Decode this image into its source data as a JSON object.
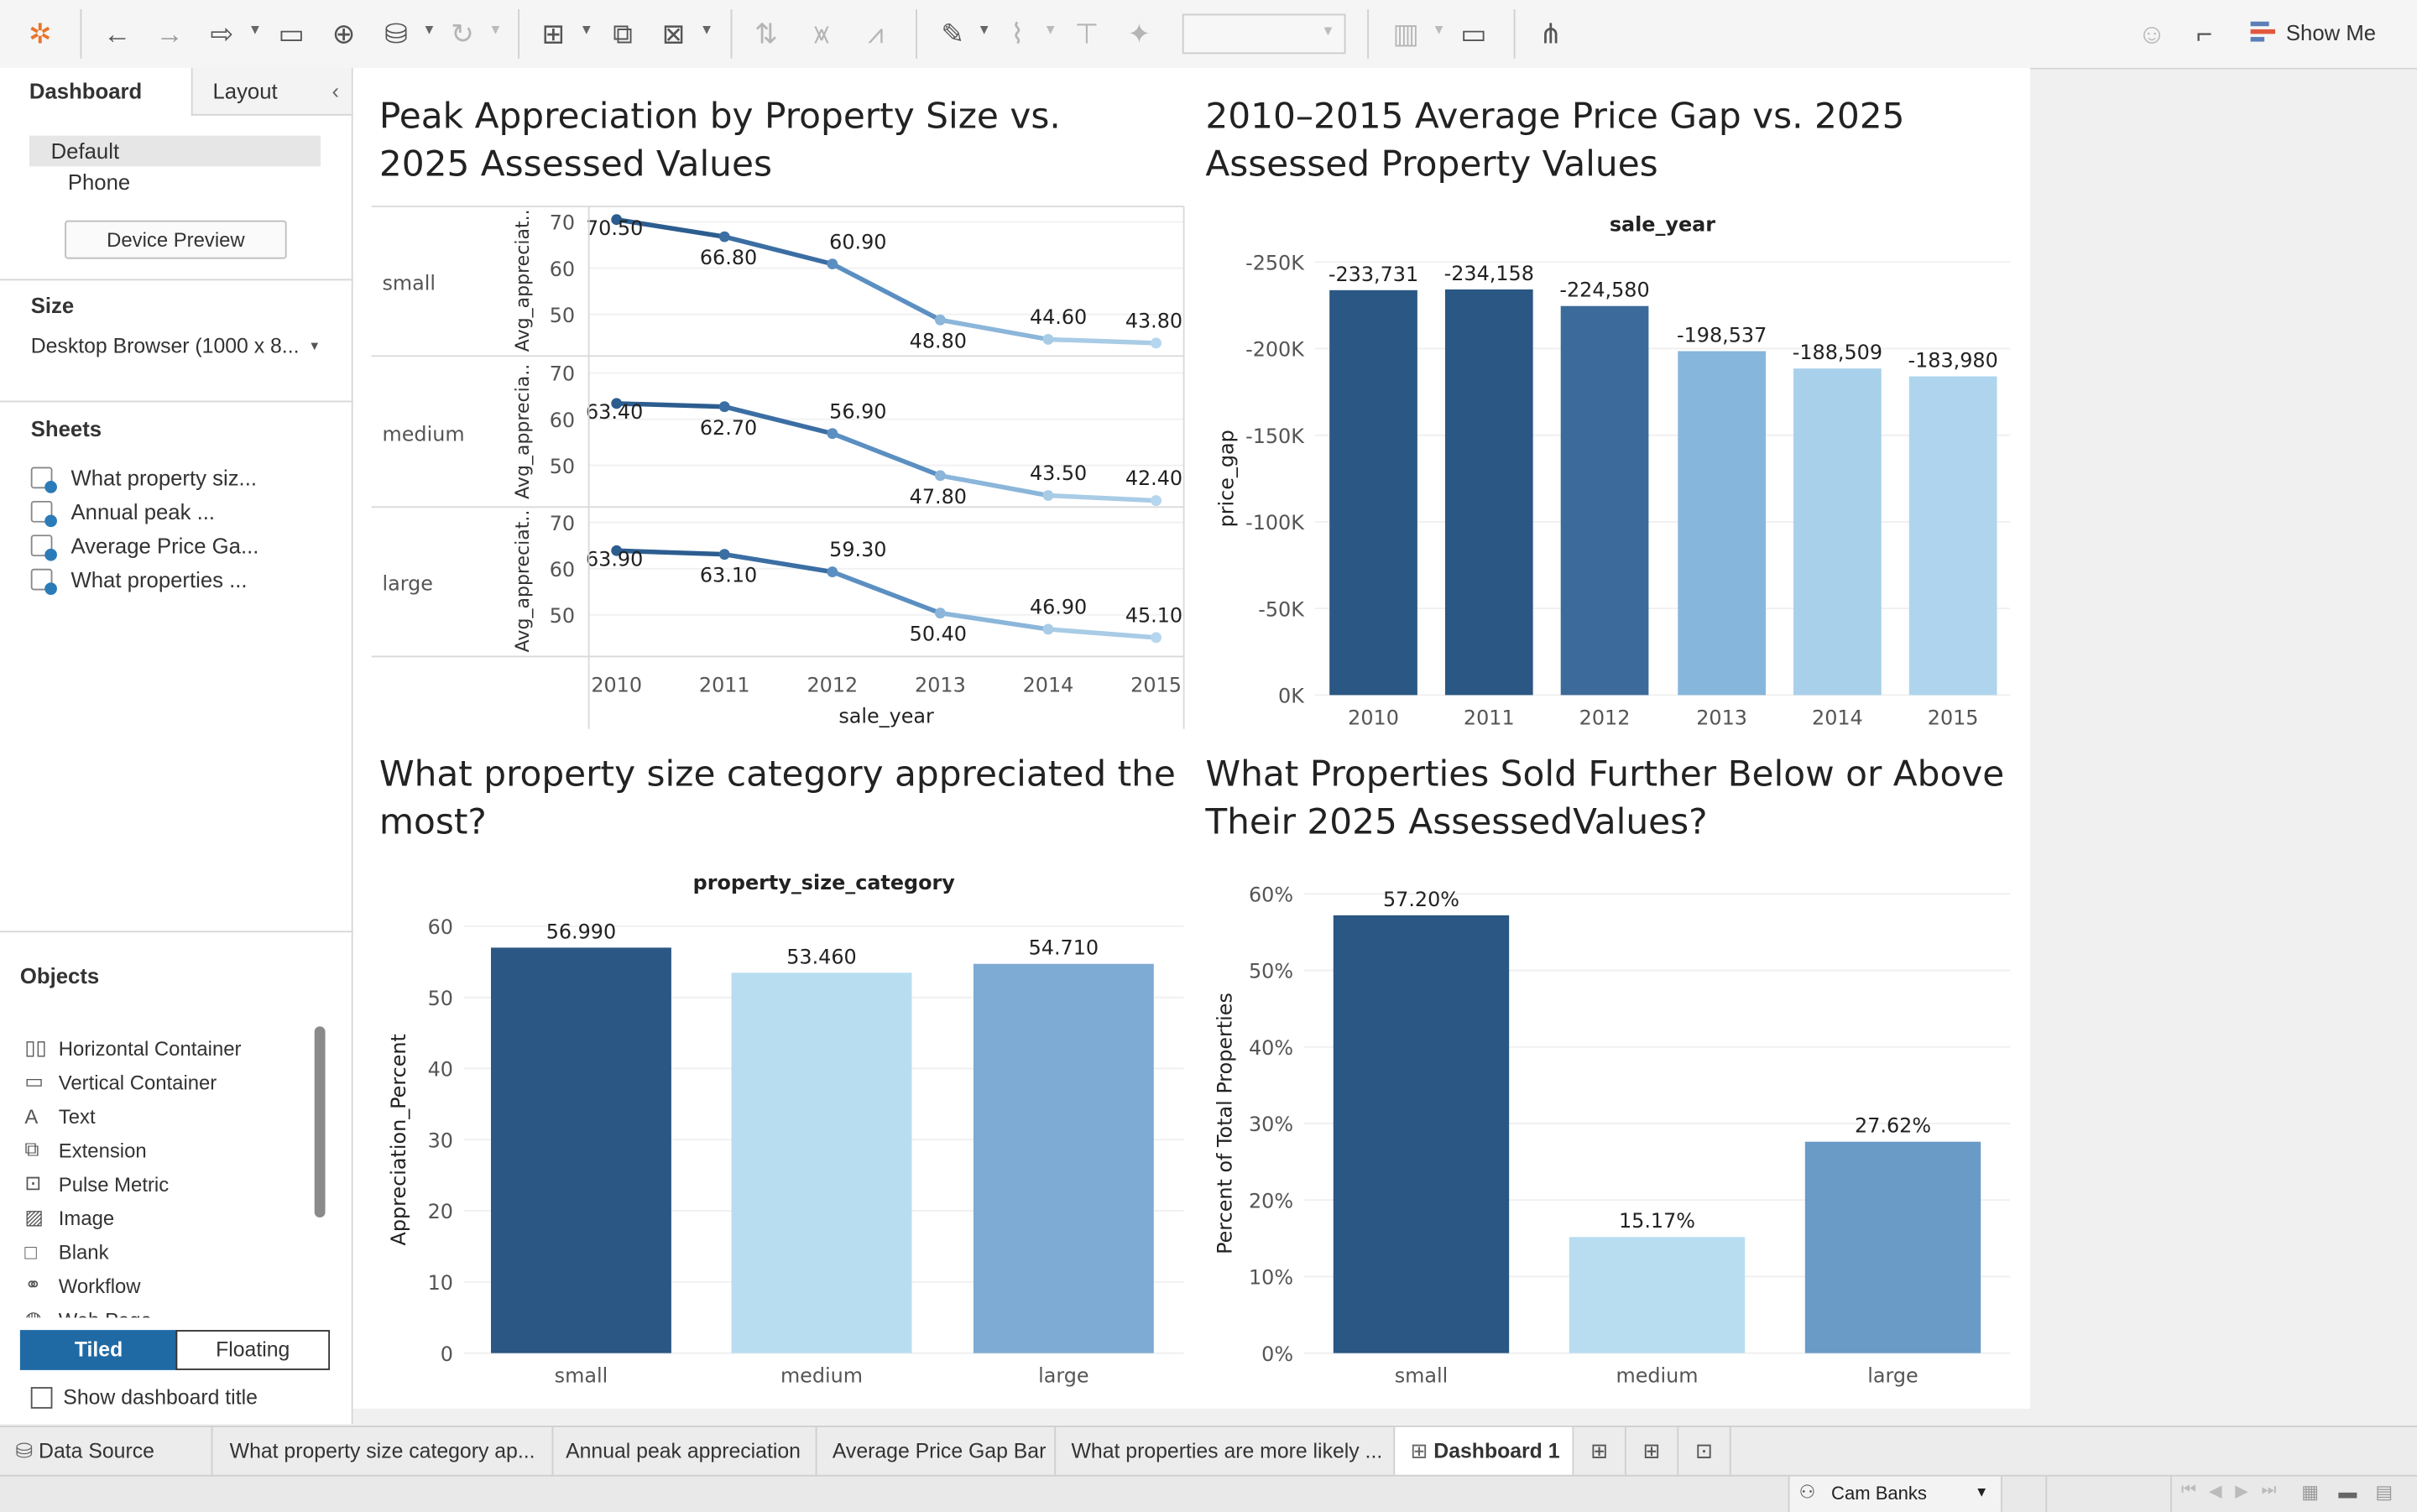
{
  "toolbar": {
    "show_me_label": "Show Me"
  },
  "left_panel": {
    "tab_dashboard": "Dashboard",
    "tab_layout": "Layout",
    "device_default": "Default",
    "device_phone": "Phone",
    "device_preview_button": "Device Preview",
    "size_title": "Size",
    "size_value": "Desktop Browser (1000 x 8...",
    "sheets_title": "Sheets",
    "sheets": [
      "What property siz...",
      "Annual peak ...",
      "Average Price Ga...",
      "What properties ..."
    ],
    "objects_title": "Objects",
    "objects": [
      {
        "icon": "horizontal-container-icon",
        "label": "Horizontal Container"
      },
      {
        "icon": "vertical-container-icon",
        "label": "Vertical Container"
      },
      {
        "icon": "text-icon",
        "label": "Text"
      },
      {
        "icon": "extension-icon",
        "label": "Extension"
      },
      {
        "icon": "pulse-metric-icon",
        "label": "Pulse Metric"
      },
      {
        "icon": "image-icon",
        "label": "Image"
      },
      {
        "icon": "blank-icon",
        "label": "Blank"
      },
      {
        "icon": "workflow-icon",
        "label": "Workflow"
      },
      {
        "icon": "web-page-icon",
        "label": "Web Page"
      }
    ],
    "tiled_label": "Tiled",
    "floating_label": "Floating",
    "show_title_label": "Show dashboard title"
  },
  "charts": {
    "line": {
      "title": "Peak Appreciation by Property Size vs. 2025 Assessed Values"
    },
    "gap": {
      "title": "2010–2015 Average Price Gap vs. 2025 Assessed Property Values"
    },
    "size": {
      "title": "What property size category appreciated the most?"
    },
    "pct": {
      "title": "What Properties Sold Further Below or Above Their 2025 AssessedValues?"
    }
  },
  "chart_data": [
    {
      "type": "line",
      "x_label": "sale_year",
      "y_label": "Avg_appreciat..",
      "x": [
        "2010",
        "2011",
        "2012",
        "2013",
        "2014",
        "2015"
      ],
      "y_ticks": [
        50,
        60,
        70
      ],
      "ylim": [
        43,
        72
      ],
      "rows": [
        {
          "label": "small",
          "y_label": "Avg_appreciat..",
          "values": [
            70.5,
            66.8,
            60.9,
            48.8,
            44.6,
            43.8
          ],
          "labels": [
            "70.50",
            "66.80",
            "60.90",
            "48.80",
            "44.60",
            "43.80"
          ]
        },
        {
          "label": "medium",
          "y_label": "Avg_apprecia..",
          "values": [
            63.4,
            62.7,
            56.9,
            47.8,
            43.5,
            42.4
          ],
          "labels": [
            "63.40",
            "62.70",
            "56.90",
            "47.80",
            "43.50",
            "42.40"
          ]
        },
        {
          "label": "large",
          "y_label": "Avg_appreciat..",
          "values": [
            63.9,
            63.1,
            59.3,
            50.4,
            46.9,
            45.1
          ],
          "labels": [
            "63.90",
            "63.10",
            "59.30",
            "50.40",
            "46.90",
            "45.10"
          ]
        }
      ],
      "colors": [
        "#2c5d8f",
        "#3b6ea3",
        "#5b8fc2",
        "#8bb6da",
        "#a9cce6",
        "#b5d6ee"
      ]
    },
    {
      "type": "bar",
      "x_label": "sale_year",
      "y_label": "price_gap",
      "categories": [
        "2010",
        "2011",
        "2012",
        "2013",
        "2014",
        "2015"
      ],
      "values": [
        -233731,
        -234158,
        -224580,
        -198537,
        -188509,
        -183980
      ],
      "value_labels": [
        "-233,731",
        "-234,158",
        "-224,580",
        "-198,537",
        "-188,509",
        "-183,980"
      ],
      "y_ticks": [
        "0K",
        "-50K",
        "-100K",
        "-150K",
        "-200K",
        "-250K"
      ],
      "ylim": [
        0,
        -250000
      ],
      "axis_reversed": true,
      "colors": [
        "#2a5783",
        "#2a5783",
        "#3c6a9a",
        "#86b6dc",
        "#a8d0ea",
        "#afd5ee"
      ]
    },
    {
      "type": "bar",
      "x_label": "property_size_category",
      "y_label": "Appreciation_Percent",
      "categories": [
        "small",
        "medium",
        "large"
      ],
      "values": [
        56.99,
        53.46,
        54.71
      ],
      "value_labels": [
        "56.990",
        "53.460",
        "54.710"
      ],
      "y_ticks": [
        "0",
        "10",
        "20",
        "30",
        "40",
        "50",
        "60"
      ],
      "ylim": [
        0,
        60
      ],
      "colors": [
        "#2a5783",
        "#b8ddf0",
        "#7eabd3"
      ]
    },
    {
      "type": "bar",
      "x_label": "",
      "y_label": "Percent of Total Properties",
      "categories": [
        "small",
        "medium",
        "large"
      ],
      "values": [
        57.2,
        15.17,
        27.62
      ],
      "value_labels": [
        "57.20%",
        "15.17%",
        "27.62%"
      ],
      "y_ticks": [
        "0%",
        "10%",
        "20%",
        "30%",
        "40%",
        "50%",
        "60%"
      ],
      "ylim": [
        0,
        60
      ],
      "colors": [
        "#2a5783",
        "#b8ddf0",
        "#6a9bc6"
      ]
    }
  ],
  "bottom_tabs": {
    "data_source": "Data Source",
    "tabs": [
      "What property size category ap...",
      "Annual peak appreciation",
      "Average Price Gap Bar",
      "What properties are more likely ..."
    ],
    "active": "Dashboard 1"
  },
  "status": {
    "user": "Cam Banks"
  }
}
